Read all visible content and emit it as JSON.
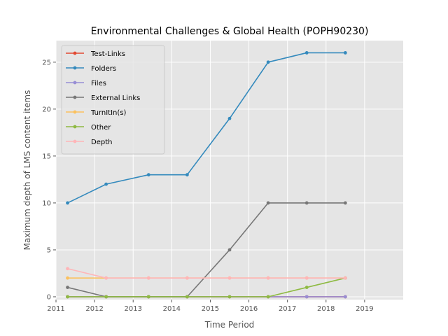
{
  "chart_data": {
    "type": "line",
    "title": "Environmental Challenges & Global Health (POPH90230)",
    "xlabel": "Time Period",
    "ylabel": "Maximum depth of LMS content items",
    "xlim": [
      2011,
      2020
    ],
    "ylim": [
      -0.3,
      27.3
    ],
    "xticks": [
      2011,
      2012,
      2013,
      2014,
      2015,
      2016,
      2017,
      2018,
      2019
    ],
    "yticks": [
      0,
      5,
      10,
      15,
      20,
      25
    ],
    "grid": true,
    "legend_position": "top-left",
    "x": [
      2011.3,
      2012.3,
      2013.4,
      2014.4,
      2015.5,
      2016.5,
      2017.5,
      2018.5
    ],
    "series": [
      {
        "name": "Test-Links",
        "color": "#e24a33",
        "values": [
          0,
          0,
          0,
          0,
          0,
          0,
          0,
          0
        ]
      },
      {
        "name": "Folders",
        "color": "#348abd",
        "values": [
          10,
          12,
          13,
          13,
          19,
          25,
          26,
          26
        ]
      },
      {
        "name": "Files",
        "color": "#988ed5",
        "values": [
          0,
          0,
          0,
          0,
          0,
          0,
          0,
          0
        ]
      },
      {
        "name": "External Links",
        "color": "#777777",
        "values": [
          1,
          0,
          0,
          0,
          5,
          10,
          10,
          10
        ]
      },
      {
        "name": "TurnItIn(s)",
        "color": "#fbc15e",
        "values": [
          2,
          2,
          2,
          2,
          2,
          2,
          2,
          2
        ]
      },
      {
        "name": "Other",
        "color": "#8eba42",
        "values": [
          0,
          0,
          0,
          0,
          0,
          0,
          1,
          2
        ]
      },
      {
        "name": "Depth",
        "color": "#ffb5b8",
        "values": [
          3,
          2,
          2,
          2,
          2,
          2,
          2,
          2
        ]
      }
    ]
  }
}
